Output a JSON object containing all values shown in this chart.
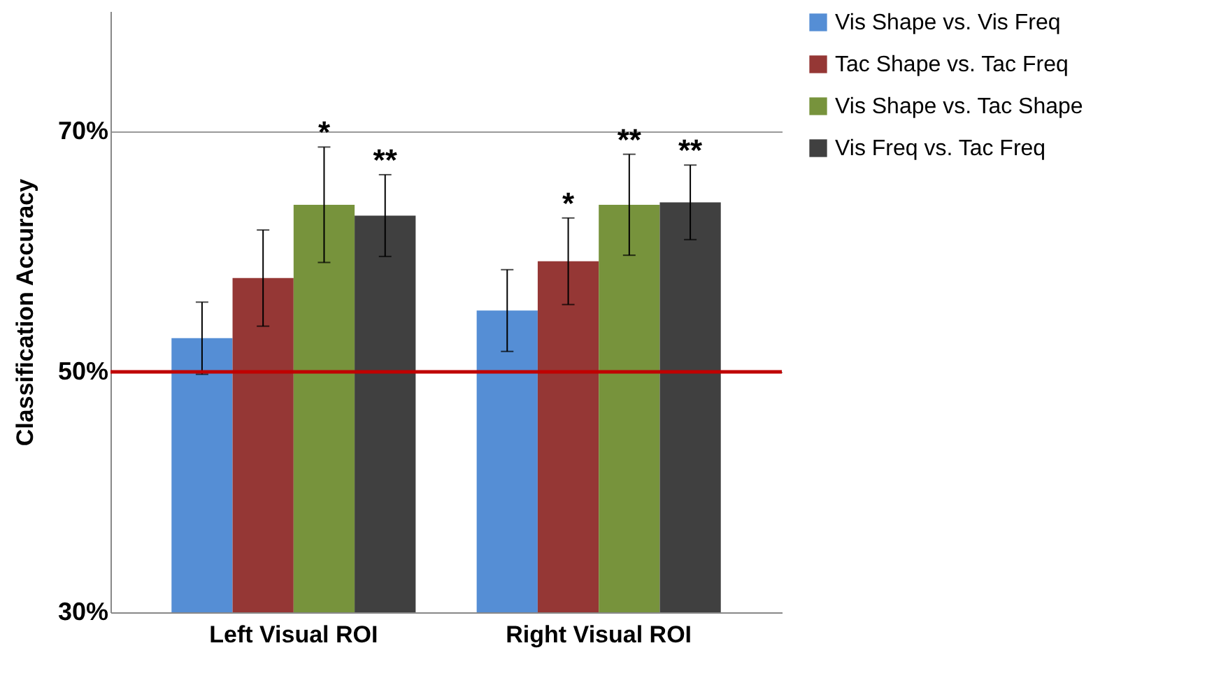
{
  "chart_data": {
    "type": "bar",
    "ylabel": "Classification Accuracy",
    "categories": [
      "Left Visual ROI",
      "Right Visual ROI"
    ],
    "series": [
      {
        "name": "Vis Shape vs. Vis Freq",
        "color": "#558ed5",
        "values": [
          52.8,
          55.1
        ],
        "errors": [
          3.0,
          3.4
        ]
      },
      {
        "name": "Tac Shape vs. Tac Freq",
        "color": "#953735",
        "values": [
          57.8,
          59.2
        ],
        "errors": [
          4.0,
          3.6
        ],
        "value_labels": [
          null,
          "*"
        ]
      },
      {
        "name": "Vis Shape vs. Tac Shape",
        "color": "#77933c",
        "values": [
          63.9,
          63.9
        ],
        "errors": [
          4.8,
          4.2
        ],
        "value_labels": [
          "*",
          "**"
        ]
      },
      {
        "name": "Vis Freq vs. Tac Freq",
        "color": "#404040",
        "values": [
          63.0,
          64.1
        ],
        "errors": [
          3.4,
          3.1
        ],
        "value_labels": [
          "**",
          "**"
        ]
      }
    ],
    "ylim": [
      30,
      80
    ],
    "yticks": [
      {
        "value": 30,
        "label": "30%"
      },
      {
        "value": 50,
        "label": "50%"
      },
      {
        "value": 70,
        "label": "70%"
      }
    ],
    "grid": "y",
    "legend": "right",
    "ref_lines": [
      {
        "axis": "y",
        "value": 50,
        "color": "#c00000"
      }
    ]
  }
}
